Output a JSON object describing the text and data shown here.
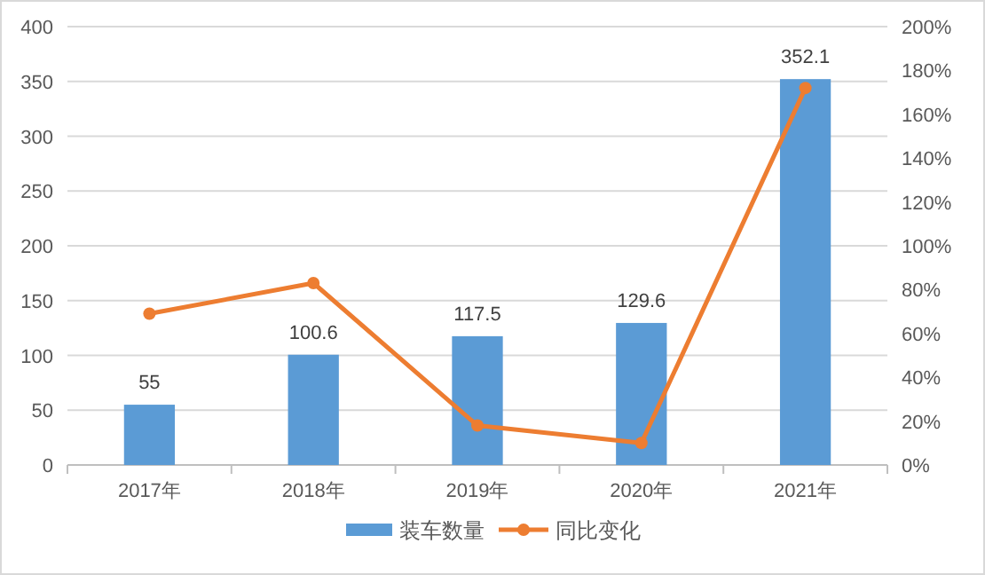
{
  "chart_data": {
    "type": "bar",
    "categories": [
      "2017年",
      "2018年",
      "2019年",
      "2020年",
      "2021年"
    ],
    "series": [
      {
        "name": "装车数量",
        "color": "#5b9bd5",
        "values": [
          55,
          100.6,
          117.5,
          129.6,
          352.1
        ],
        "value_labels": [
          "55",
          "100.6",
          "117.5",
          "129.6",
          "352.1"
        ]
      },
      {
        "name": "同比变化",
        "type": "line",
        "axis": "y2",
        "color": "#ed7d31",
        "marker": "circle",
        "values": [
          69,
          83,
          18,
          10,
          172
        ]
      }
    ],
    "ylim": [
      0,
      400
    ],
    "yticks": [
      0,
      50,
      100,
      150,
      200,
      250,
      300,
      350,
      400
    ],
    "y2lim": [
      0,
      200
    ],
    "y2ticks": [
      {
        "value": 0,
        "label": "0%"
      },
      {
        "value": 20,
        "label": "20%"
      },
      {
        "value": 40,
        "label": "40%"
      },
      {
        "value": 60,
        "label": "60%"
      },
      {
        "value": 80,
        "label": "80%"
      },
      {
        "value": 100,
        "label": "100%"
      },
      {
        "value": 120,
        "label": "120%"
      },
      {
        "value": 140,
        "label": "140%"
      },
      {
        "value": 160,
        "label": "160%"
      },
      {
        "value": 180,
        "label": "180%"
      },
      {
        "value": 200,
        "label": "200%"
      }
    ],
    "grid": "y",
    "legend": "bottom"
  }
}
